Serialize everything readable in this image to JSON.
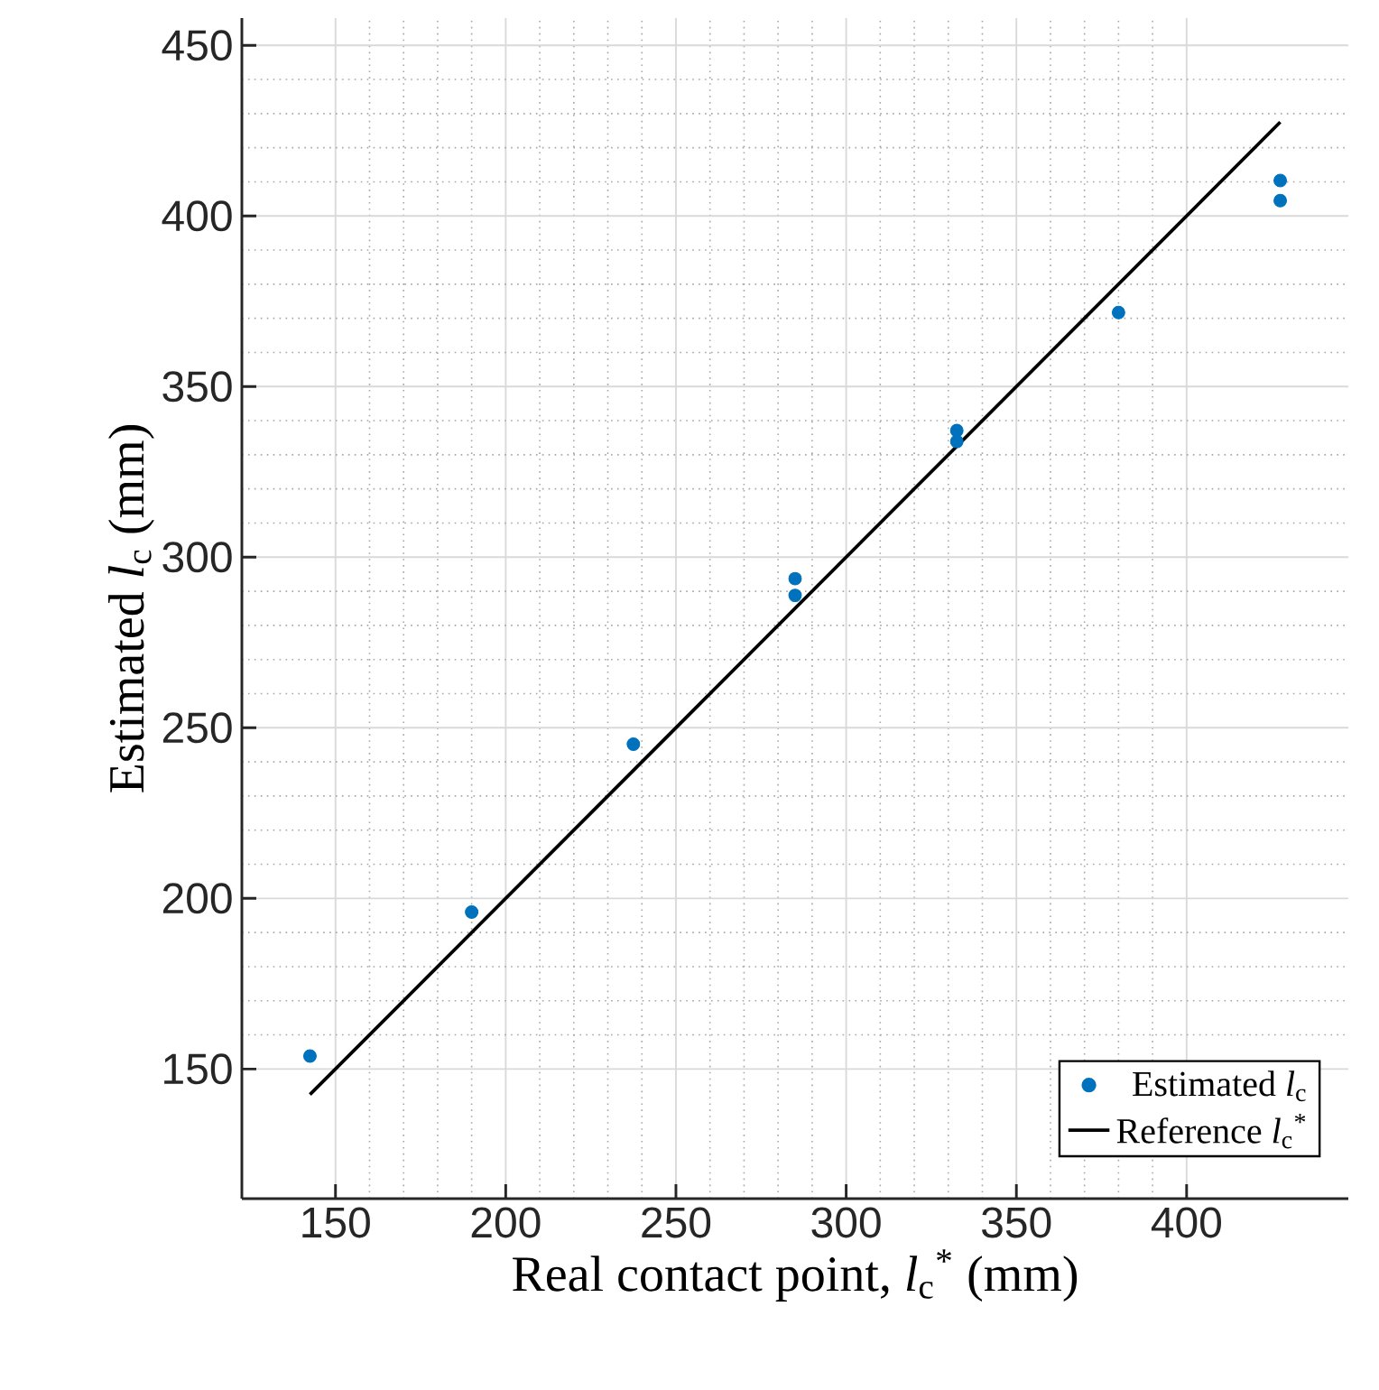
{
  "chart_data": {
    "type": "scatter",
    "xlabel": "Real contact point, *l*$_{c}$$^{*}$ (mm)",
    "ylabel": "Estimated *l*$_{c}$ (mm)",
    "xlim": [
      122.5,
      447.5
    ],
    "ylim": [
      112,
      458
    ],
    "xticks": [
      150,
      200,
      250,
      300,
      350,
      400
    ],
    "yticks": [
      150,
      200,
      250,
      300,
      350,
      400,
      450
    ],
    "grid": true,
    "legend": "bottom right",
    "series": [
      {
        "name": "Estimated *l*$_{c}$",
        "color": "#0072bd",
        "marker": "circle",
        "x": [
          142.5,
          190,
          237.5,
          285,
          285,
          332.5,
          332.5,
          380,
          427.5,
          427.5
        ],
        "values": [
          153.8,
          196,
          245.2,
          293.7,
          288.8,
          337.1,
          333.9,
          371.7,
          410.4,
          404.5
        ]
      },
      {
        "name": "Reference *l*$_{c}$$^{*}$",
        "type": "line",
        "color": "#000000",
        "marker": "none",
        "line_style": "solid",
        "x": [
          142.5,
          427.5
        ],
        "values": [
          142.5,
          427.5
        ]
      }
    ]
  }
}
